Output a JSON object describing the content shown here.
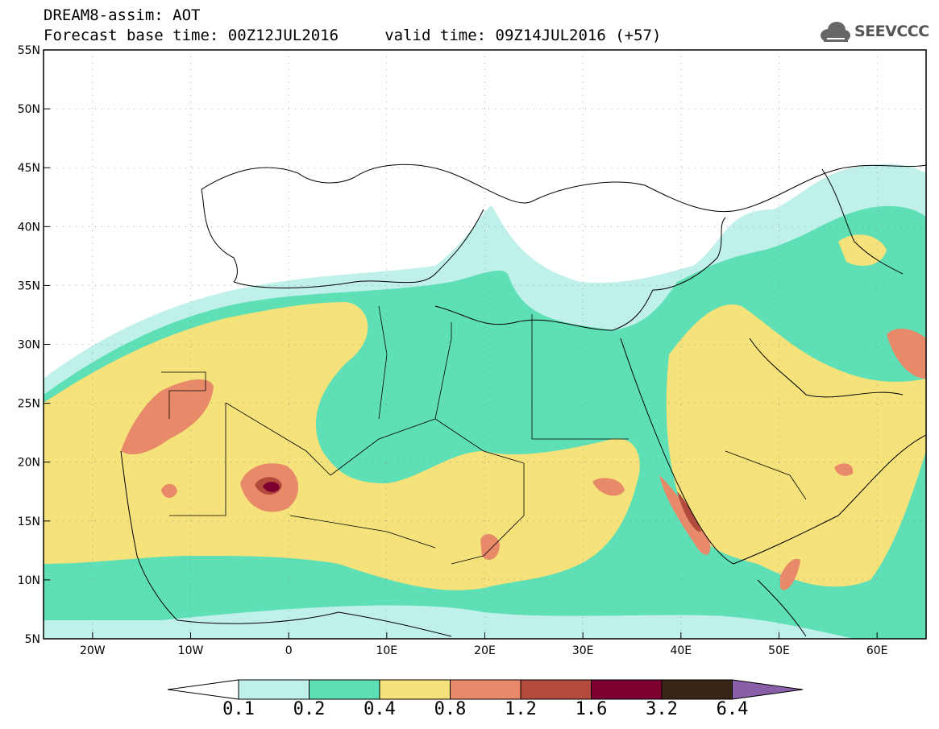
{
  "header": {
    "line1": "DREAM8-assim: AOT",
    "line2": "Forecast base time: 00Z12JUL2016     valid time: 09Z14JUL2016 (+57)"
  },
  "logo": {
    "text": "SEEVCCC",
    "icon": "cloud-icon"
  },
  "map": {
    "lon_range": [
      -25,
      65
    ],
    "lat_range": [
      5,
      55
    ],
    "x_ticks": [
      "20W",
      "10W",
      "0",
      "10E",
      "20E",
      "30E",
      "40E",
      "50E",
      "60E"
    ],
    "y_ticks": [
      "55N",
      "50N",
      "45N",
      "40N",
      "35N",
      "30N",
      "25N",
      "20N",
      "15N",
      "10N",
      "5N"
    ],
    "grid": true
  },
  "colorbar": {
    "labels": [
      "0.1",
      "0.2",
      "0.4",
      "0.8",
      "1.2",
      "1.6",
      "3.2",
      "6.4"
    ],
    "colors": [
      "#ffffff",
      "#bff0e9",
      "#5fdfb6",
      "#f5e27a",
      "#e8896a",
      "#b24a3e",
      "#7b0030",
      "#3a2415",
      "#8a5ea8"
    ]
  },
  "palette": {
    "c1": "#bff0e9",
    "c2": "#5fdfb6",
    "c3": "#f5e27a",
    "c4": "#e8896a",
    "c5": "#b24a3e",
    "c6": "#7b0030"
  }
}
